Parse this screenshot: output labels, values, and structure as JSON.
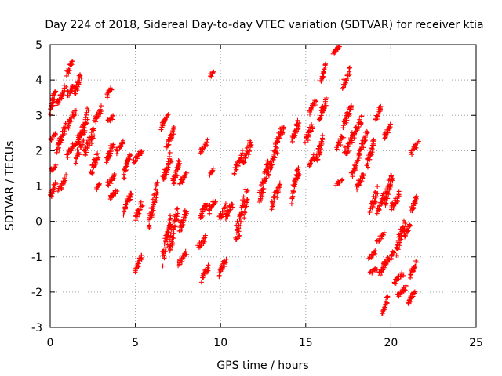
{
  "chart_data": {
    "type": "scatter",
    "title": "Day 224 of 2018, Sidereal Day-to-day VTEC variation (SDTVAR) for receiver ktia",
    "xlabel": "GPS time / hours",
    "ylabel": "SDTVAR / TECUs",
    "xlim": [
      0,
      25
    ],
    "ylim": [
      -3,
      5
    ],
    "xticks": [
      0,
      5,
      10,
      15,
      20,
      25
    ],
    "yticks": [
      -3,
      -2,
      -1,
      0,
      1,
      2,
      3,
      4,
      5
    ],
    "grid": true,
    "marker": "+",
    "color": "#ff0000",
    "series": [
      {
        "name": "SDTVAR",
        "segments": [
          {
            "x0": 0.0,
            "x1": 0.3,
            "y0": 3.0,
            "y1": 3.8
          },
          {
            "x0": 0.0,
            "x1": 0.35,
            "y0": 2.3,
            "y1": 2.5
          },
          {
            "x0": 0.0,
            "x1": 0.35,
            "y0": 1.4,
            "y1": 1.6
          },
          {
            "x0": 0.0,
            "x1": 0.35,
            "y0": 0.6,
            "y1": 1.2
          },
          {
            "x0": 0.35,
            "x1": 0.9,
            "y0": 3.2,
            "y1": 3.9
          },
          {
            "x0": 0.4,
            "x1": 0.9,
            "y0": 1.8,
            "y1": 2.9
          },
          {
            "x0": 0.5,
            "x1": 0.9,
            "y0": 0.8,
            "y1": 1.3
          },
          {
            "x0": 1.0,
            "x1": 1.3,
            "y0": 4.1,
            "y1": 4.6
          },
          {
            "x0": 1.0,
            "x1": 1.4,
            "y0": 3.5,
            "y1": 3.9
          },
          {
            "x0": 1.0,
            "x1": 1.5,
            "y0": 2.6,
            "y1": 3.2
          },
          {
            "x0": 1.0,
            "x1": 1.5,
            "y0": 1.8,
            "y1": 2.3
          },
          {
            "x0": 1.4,
            "x1": 1.8,
            "y0": 3.5,
            "y1": 4.3
          },
          {
            "x0": 1.5,
            "x1": 2.2,
            "y0": 1.5,
            "y1": 3.2
          },
          {
            "x0": 1.6,
            "x1": 2.0,
            "y0": 2.2,
            "y1": 2.8
          },
          {
            "x0": 2.0,
            "x1": 2.6,
            "y0": 1.8,
            "y1": 2.7
          },
          {
            "x0": 2.4,
            "x1": 2.8,
            "y0": 1.3,
            "y1": 2.0
          },
          {
            "x0": 2.6,
            "x1": 3.0,
            "y0": 2.8,
            "y1": 3.3
          },
          {
            "x0": 2.7,
            "x1": 2.9,
            "y0": 0.9,
            "y1": 1.1
          },
          {
            "x0": 3.3,
            "x1": 3.6,
            "y0": 3.5,
            "y1": 3.8
          },
          {
            "x0": 3.4,
            "x1": 3.7,
            "y0": 2.8,
            "y1": 3.0
          },
          {
            "x0": 3.3,
            "x1": 3.7,
            "y0": 1.6,
            "y1": 2.3
          },
          {
            "x0": 3.4,
            "x1": 3.8,
            "y0": 1.0,
            "y1": 1.4
          },
          {
            "x0": 3.5,
            "x1": 3.9,
            "y0": 0.6,
            "y1": 0.9
          },
          {
            "x0": 3.9,
            "x1": 4.3,
            "y0": 1.9,
            "y1": 2.3
          },
          {
            "x0": 4.3,
            "x1": 4.7,
            "y0": 1.2,
            "y1": 2.0
          },
          {
            "x0": 4.3,
            "x1": 4.8,
            "y0": 0.2,
            "y1": 1.0
          },
          {
            "x0": 4.9,
            "x1": 5.4,
            "y0": 1.6,
            "y1": 2.1
          },
          {
            "x0": 5.0,
            "x1": 5.4,
            "y0": 0.0,
            "y1": 0.6
          },
          {
            "x0": 5.0,
            "x1": 5.4,
            "y0": -1.5,
            "y1": -0.9
          },
          {
            "x0": 5.8,
            "x1": 6.3,
            "y0": -0.2,
            "y1": 1.2
          },
          {
            "x0": 6.5,
            "x1": 6.9,
            "y0": 2.6,
            "y1": 3.1
          },
          {
            "x0": 6.6,
            "x1": 7.1,
            "y0": 1.0,
            "y1": 2.0
          },
          {
            "x0": 6.6,
            "x1": 7.1,
            "y0": -1.3,
            "y1": 0.3
          },
          {
            "x0": 6.8,
            "x1": 7.3,
            "y0": 2.0,
            "y1": 2.7
          },
          {
            "x0": 7.0,
            "x1": 7.5,
            "y0": -1.0,
            "y1": 0.5
          },
          {
            "x0": 7.2,
            "x1": 7.6,
            "y0": 0.9,
            "y1": 1.8
          },
          {
            "x0": 7.6,
            "x1": 8.0,
            "y0": 1.0,
            "y1": 1.4
          },
          {
            "x0": 7.5,
            "x1": 8.0,
            "y0": -1.3,
            "y1": -0.8
          },
          {
            "x0": 7.6,
            "x1": 8.0,
            "y0": -0.4,
            "y1": 0.4
          },
          {
            "x0": 8.7,
            "x1": 9.1,
            "y0": -0.8,
            "y1": -0.4
          },
          {
            "x0": 8.8,
            "x1": 9.2,
            "y0": 1.9,
            "y1": 2.3
          },
          {
            "x0": 8.8,
            "x1": 9.2,
            "y0": 0.0,
            "y1": 0.6
          },
          {
            "x0": 8.9,
            "x1": 9.3,
            "y0": -1.7,
            "y1": -1.2
          },
          {
            "x0": 9.4,
            "x1": 9.6,
            "y0": 4.1,
            "y1": 4.3
          },
          {
            "x0": 9.4,
            "x1": 9.6,
            "y0": 1.3,
            "y1": 1.5
          },
          {
            "x0": 9.3,
            "x1": 9.7,
            "y0": 0.2,
            "y1": 0.7
          },
          {
            "x0": 9.9,
            "x1": 10.3,
            "y0": 0.0,
            "y1": 0.5
          },
          {
            "x0": 9.9,
            "x1": 10.3,
            "y0": -1.6,
            "y1": -1.0
          },
          {
            "x0": 10.3,
            "x1": 10.7,
            "y0": 0.0,
            "y1": 0.6
          },
          {
            "x0": 10.8,
            "x1": 11.3,
            "y0": 1.3,
            "y1": 2.0
          },
          {
            "x0": 10.9,
            "x1": 11.6,
            "y0": -0.7,
            "y1": 1.1
          },
          {
            "x0": 11.3,
            "x1": 11.8,
            "y0": 1.5,
            "y1": 2.4
          },
          {
            "x0": 12.3,
            "x1": 12.8,
            "y0": 0.4,
            "y1": 1.9
          },
          {
            "x0": 12.8,
            "x1": 13.3,
            "y0": 1.2,
            "y1": 2.2
          },
          {
            "x0": 13.0,
            "x1": 13.5,
            "y0": 0.3,
            "y1": 1.2
          },
          {
            "x0": 13.2,
            "x1": 13.7,
            "y0": 2.0,
            "y1": 2.8
          },
          {
            "x0": 14.2,
            "x1": 14.6,
            "y0": 2.2,
            "y1": 2.9
          },
          {
            "x0": 14.2,
            "x1": 14.6,
            "y0": 0.5,
            "y1": 1.7
          },
          {
            "x0": 15.0,
            "x1": 15.4,
            "y0": 2.2,
            "y1": 2.8
          },
          {
            "x0": 15.2,
            "x1": 15.6,
            "y0": 3.0,
            "y1": 3.5
          },
          {
            "x0": 15.2,
            "x1": 15.5,
            "y0": 1.5,
            "y1": 1.9
          },
          {
            "x0": 15.6,
            "x1": 16.0,
            "y0": 1.6,
            "y1": 2.5
          },
          {
            "x0": 15.8,
            "x1": 16.2,
            "y0": 2.8,
            "y1": 3.5
          },
          {
            "x0": 15.9,
            "x1": 16.2,
            "y0": 3.9,
            "y1": 4.5
          },
          {
            "x0": 16.6,
            "x1": 17.0,
            "y0": 4.7,
            "y1": 5.0
          },
          {
            "x0": 16.8,
            "x1": 17.2,
            "y0": 2.0,
            "y1": 2.5
          },
          {
            "x0": 16.8,
            "x1": 17.1,
            "y0": 1.0,
            "y1": 1.2
          },
          {
            "x0": 17.2,
            "x1": 17.6,
            "y0": 3.7,
            "y1": 4.4
          },
          {
            "x0": 17.2,
            "x1": 17.7,
            "y0": 2.6,
            "y1": 3.4
          },
          {
            "x0": 17.3,
            "x1": 17.8,
            "y0": 1.8,
            "y1": 2.6
          },
          {
            "x0": 17.7,
            "x1": 18.2,
            "y0": 1.2,
            "y1": 2.0
          },
          {
            "x0": 17.8,
            "x1": 18.3,
            "y0": 2.3,
            "y1": 3.0
          },
          {
            "x0": 18.0,
            "x1": 18.4,
            "y0": 0.8,
            "y1": 1.5
          },
          {
            "x0": 18.2,
            "x1": 18.6,
            "y0": 1.9,
            "y1": 2.6
          },
          {
            "x0": 18.6,
            "x1": 19.0,
            "y0": 1.5,
            "y1": 2.4
          },
          {
            "x0": 18.7,
            "x1": 19.1,
            "y0": -1.1,
            "y1": -0.8
          },
          {
            "x0": 18.8,
            "x1": 19.2,
            "y0": -1.5,
            "y1": -1.3
          },
          {
            "x0": 18.8,
            "x1": 19.2,
            "y0": 0.2,
            "y1": 1.0
          },
          {
            "x0": 19.1,
            "x1": 19.4,
            "y0": 2.8,
            "y1": 3.3
          },
          {
            "x0": 19.2,
            "x1": 19.6,
            "y0": 0.2,
            "y1": 0.8
          },
          {
            "x0": 19.2,
            "x1": 19.6,
            "y0": -0.6,
            "y1": -0.3
          },
          {
            "x0": 19.3,
            "x1": 19.7,
            "y0": -1.6,
            "y1": -1.1
          },
          {
            "x0": 19.5,
            "x1": 19.8,
            "y0": -2.7,
            "y1": -2.1
          },
          {
            "x0": 19.6,
            "x1": 20.0,
            "y0": 2.3,
            "y1": 2.8
          },
          {
            "x0": 19.6,
            "x1": 20.1,
            "y0": 0.3,
            "y1": 1.5
          },
          {
            "x0": 19.6,
            "x1": 20.2,
            "y0": -1.3,
            "y1": -0.8
          },
          {
            "x0": 20.0,
            "x1": 20.5,
            "y0": 0.2,
            "y1": 0.9
          },
          {
            "x0": 20.2,
            "x1": 20.7,
            "y0": -1.8,
            "y1": -1.4
          },
          {
            "x0": 20.3,
            "x1": 20.8,
            "y0": -1.0,
            "y1": 0.1
          },
          {
            "x0": 20.4,
            "x1": 20.9,
            "y0": -2.2,
            "y1": -1.8
          },
          {
            "x0": 20.8,
            "x1": 21.1,
            "y0": -0.5,
            "y1": 0.0
          },
          {
            "x0": 21.0,
            "x1": 21.4,
            "y0": -2.4,
            "y1": -1.9
          },
          {
            "x0": 21.1,
            "x1": 21.5,
            "y0": -1.6,
            "y1": -1.1
          },
          {
            "x0": 21.2,
            "x1": 21.5,
            "y0": 0.2,
            "y1": 0.8
          },
          {
            "x0": 21.2,
            "x1": 21.6,
            "y0": 1.9,
            "y1": 2.3
          }
        ]
      }
    ]
  }
}
